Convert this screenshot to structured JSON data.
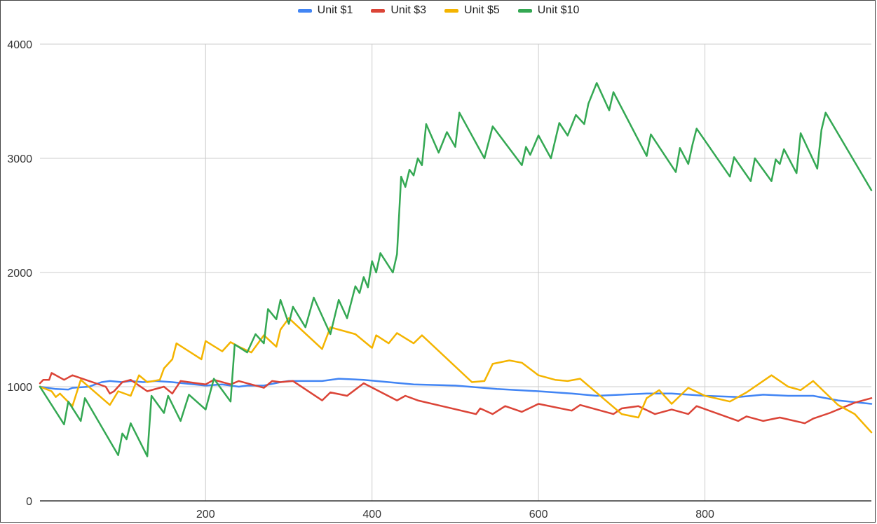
{
  "chart_data": {
    "type": "line",
    "title": "",
    "xlabel": "",
    "ylabel": "",
    "xlim": [
      1,
      1000
    ],
    "ylim": [
      0,
      4000
    ],
    "x_ticks": [
      "200",
      "400",
      "600",
      "800"
    ],
    "x_tick_values": [
      200,
      400,
      600,
      800
    ],
    "y_ticks": [
      "0",
      "1000",
      "2000",
      "3000",
      "4000"
    ],
    "y_tick_values": [
      0,
      1000,
      2000,
      3000,
      4000
    ],
    "grid": true,
    "legend_position": "top",
    "series": [
      {
        "name": "Unit $1",
        "color": "#4285f4",
        "points": [
          [
            1,
            1000
          ],
          [
            20,
            980
          ],
          [
            35,
            975
          ],
          [
            40,
            990
          ],
          [
            60,
            1000
          ],
          [
            75,
            1040
          ],
          [
            85,
            1050
          ],
          [
            100,
            1040
          ],
          [
            110,
            1050
          ],
          [
            125,
            1040
          ],
          [
            140,
            1050
          ],
          [
            160,
            1040
          ],
          [
            200,
            1010
          ],
          [
            220,
            1020
          ],
          [
            240,
            1000
          ],
          [
            250,
            1010
          ],
          [
            270,
            1010
          ],
          [
            290,
            1040
          ],
          [
            300,
            1050
          ],
          [
            340,
            1050
          ],
          [
            360,
            1070
          ],
          [
            390,
            1060
          ],
          [
            420,
            1040
          ],
          [
            450,
            1020
          ],
          [
            500,
            1010
          ],
          [
            550,
            980
          ],
          [
            600,
            960
          ],
          [
            640,
            940
          ],
          [
            670,
            920
          ],
          [
            700,
            930
          ],
          [
            730,
            940
          ],
          [
            760,
            940
          ],
          [
            800,
            920
          ],
          [
            840,
            910
          ],
          [
            870,
            930
          ],
          [
            900,
            920
          ],
          [
            930,
            920
          ],
          [
            960,
            880
          ],
          [
            1000,
            850
          ]
        ]
      },
      {
        "name": "Unit $3",
        "color": "#db4437",
        "points": [
          [
            1,
            1030
          ],
          [
            5,
            1060
          ],
          [
            12,
            1060
          ],
          [
            15,
            1120
          ],
          [
            30,
            1060
          ],
          [
            40,
            1100
          ],
          [
            80,
            1000
          ],
          [
            85,
            940
          ],
          [
            90,
            960
          ],
          [
            100,
            1040
          ],
          [
            110,
            1060
          ],
          [
            130,
            960
          ],
          [
            150,
            1000
          ],
          [
            160,
            940
          ],
          [
            170,
            1050
          ],
          [
            200,
            1020
          ],
          [
            210,
            1060
          ],
          [
            230,
            1020
          ],
          [
            240,
            1050
          ],
          [
            270,
            990
          ],
          [
            280,
            1050
          ],
          [
            290,
            1040
          ],
          [
            305,
            1050
          ],
          [
            340,
            880
          ],
          [
            350,
            950
          ],
          [
            370,
            920
          ],
          [
            390,
            1030
          ],
          [
            430,
            880
          ],
          [
            440,
            920
          ],
          [
            455,
            880
          ],
          [
            525,
            760
          ],
          [
            530,
            810
          ],
          [
            545,
            760
          ],
          [
            560,
            830
          ],
          [
            580,
            780
          ],
          [
            600,
            850
          ],
          [
            640,
            790
          ],
          [
            650,
            840
          ],
          [
            690,
            760
          ],
          [
            700,
            810
          ],
          [
            720,
            830
          ],
          [
            740,
            760
          ],
          [
            760,
            800
          ],
          [
            780,
            760
          ],
          [
            790,
            830
          ],
          [
            840,
            700
          ],
          [
            850,
            740
          ],
          [
            870,
            700
          ],
          [
            890,
            730
          ],
          [
            920,
            680
          ],
          [
            930,
            720
          ],
          [
            950,
            770
          ],
          [
            980,
            860
          ],
          [
            1000,
            900
          ]
        ]
      },
      {
        "name": "Unit $5",
        "color": "#f4b400",
        "points": [
          [
            1,
            1000
          ],
          [
            15,
            960
          ],
          [
            20,
            910
          ],
          [
            25,
            940
          ],
          [
            40,
            830
          ],
          [
            50,
            1060
          ],
          [
            85,
            840
          ],
          [
            95,
            960
          ],
          [
            110,
            920
          ],
          [
            120,
            1100
          ],
          [
            130,
            1040
          ],
          [
            145,
            1060
          ],
          [
            150,
            1160
          ],
          [
            160,
            1240
          ],
          [
            165,
            1380
          ],
          [
            195,
            1240
          ],
          [
            200,
            1400
          ],
          [
            220,
            1310
          ],
          [
            230,
            1390
          ],
          [
            240,
            1350
          ],
          [
            255,
            1300
          ],
          [
            270,
            1450
          ],
          [
            285,
            1350
          ],
          [
            290,
            1500
          ],
          [
            300,
            1600
          ],
          [
            340,
            1330
          ],
          [
            350,
            1520
          ],
          [
            380,
            1460
          ],
          [
            400,
            1340
          ],
          [
            405,
            1450
          ],
          [
            420,
            1380
          ],
          [
            430,
            1470
          ],
          [
            450,
            1380
          ],
          [
            460,
            1450
          ],
          [
            520,
            1040
          ],
          [
            535,
            1050
          ],
          [
            545,
            1200
          ],
          [
            565,
            1230
          ],
          [
            580,
            1210
          ],
          [
            600,
            1100
          ],
          [
            620,
            1060
          ],
          [
            635,
            1050
          ],
          [
            650,
            1070
          ],
          [
            700,
            760
          ],
          [
            720,
            730
          ],
          [
            730,
            900
          ],
          [
            745,
            970
          ],
          [
            760,
            850
          ],
          [
            780,
            990
          ],
          [
            800,
            920
          ],
          [
            830,
            870
          ],
          [
            850,
            950
          ],
          [
            880,
            1100
          ],
          [
            900,
            1000
          ],
          [
            915,
            970
          ],
          [
            930,
            1050
          ],
          [
            960,
            840
          ],
          [
            980,
            760
          ],
          [
            1000,
            600
          ]
        ]
      },
      {
        "name": "Unit $10",
        "color": "#34a853",
        "points": [
          [
            1,
            1000
          ],
          [
            30,
            670
          ],
          [
            35,
            870
          ],
          [
            50,
            700
          ],
          [
            55,
            900
          ],
          [
            95,
            400
          ],
          [
            100,
            590
          ],
          [
            105,
            540
          ],
          [
            110,
            680
          ],
          [
            130,
            390
          ],
          [
            135,
            920
          ],
          [
            150,
            770
          ],
          [
            155,
            920
          ],
          [
            170,
            700
          ],
          [
            180,
            930
          ],
          [
            200,
            800
          ],
          [
            210,
            1070
          ],
          [
            230,
            870
          ],
          [
            235,
            1370
          ],
          [
            250,
            1300
          ],
          [
            260,
            1460
          ],
          [
            270,
            1380
          ],
          [
            275,
            1680
          ],
          [
            285,
            1590
          ],
          [
            290,
            1760
          ],
          [
            300,
            1550
          ],
          [
            305,
            1700
          ],
          [
            320,
            1520
          ],
          [
            330,
            1780
          ],
          [
            350,
            1460
          ],
          [
            360,
            1760
          ],
          [
            370,
            1600
          ],
          [
            380,
            1880
          ],
          [
            385,
            1820
          ],
          [
            390,
            1960
          ],
          [
            395,
            1870
          ],
          [
            400,
            2100
          ],
          [
            405,
            2000
          ],
          [
            410,
            2170
          ],
          [
            425,
            2000
          ],
          [
            430,
            2160
          ],
          [
            435,
            2840
          ],
          [
            440,
            2750
          ],
          [
            445,
            2900
          ],
          [
            450,
            2850
          ],
          [
            455,
            3000
          ],
          [
            460,
            2940
          ],
          [
            465,
            3300
          ],
          [
            480,
            3050
          ],
          [
            490,
            3230
          ],
          [
            500,
            3100
          ],
          [
            505,
            3400
          ],
          [
            535,
            3000
          ],
          [
            545,
            3280
          ],
          [
            580,
            2940
          ],
          [
            585,
            3100
          ],
          [
            590,
            3030
          ],
          [
            600,
            3200
          ],
          [
            615,
            3000
          ],
          [
            625,
            3310
          ],
          [
            635,
            3200
          ],
          [
            645,
            3380
          ],
          [
            655,
            3300
          ],
          [
            660,
            3480
          ],
          [
            670,
            3660
          ],
          [
            685,
            3420
          ],
          [
            690,
            3580
          ],
          [
            730,
            3020
          ],
          [
            735,
            3210
          ],
          [
            765,
            2880
          ],
          [
            770,
            3090
          ],
          [
            780,
            2950
          ],
          [
            785,
            3120
          ],
          [
            790,
            3260
          ],
          [
            830,
            2840
          ],
          [
            835,
            3010
          ],
          [
            855,
            2800
          ],
          [
            860,
            3000
          ],
          [
            880,
            2800
          ],
          [
            885,
            2990
          ],
          [
            890,
            2950
          ],
          [
            895,
            3080
          ],
          [
            910,
            2870
          ],
          [
            915,
            3220
          ],
          [
            935,
            2910
          ],
          [
            940,
            3250
          ],
          [
            945,
            3400
          ],
          [
            1000,
            2720
          ]
        ]
      }
    ]
  }
}
